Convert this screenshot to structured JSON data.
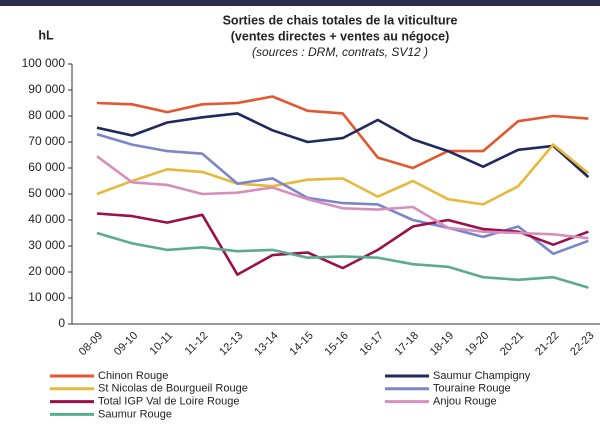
{
  "chart_data": {
    "type": "line",
    "title": "Sorties de chais totales de la viticulture",
    "subtitle": "(ventes directes + ventes au négoce)",
    "source": "(sources : DRM, contrats, SV12 )",
    "y_label": "hL",
    "categories": [
      "08-09",
      "09-10",
      "10-11",
      "11-12",
      "12-13",
      "13-14",
      "14-15",
      "15-16",
      "16-17",
      "17-18",
      "18-19",
      "19-20",
      "20-21",
      "21-22",
      "22-23"
    ],
    "ylim": [
      0,
      100000
    ],
    "yticks": [
      {
        "value": 0,
        "label": "0"
      },
      {
        "value": 10000,
        "label": "10 000"
      },
      {
        "value": 20000,
        "label": "20 000"
      },
      {
        "value": 30000,
        "label": "30 000"
      },
      {
        "value": 40000,
        "label": "40 000"
      },
      {
        "value": 50000,
        "label": "50 000"
      },
      {
        "value": 60000,
        "label": "60 000"
      },
      {
        "value": 70000,
        "label": "70 000"
      },
      {
        "value": 80000,
        "label": "80 000"
      },
      {
        "value": 90000,
        "label": "90 000"
      },
      {
        "value": 100000,
        "label": "100 000"
      }
    ],
    "grid": false,
    "legend": "bottom",
    "series": [
      {
        "name": "Chinon Rouge",
        "color": "#e4572e",
        "values": [
          85000,
          84500,
          81500,
          84500,
          85000,
          87500,
          82000,
          81000,
          64000,
          60000,
          66500,
          66500,
          78000,
          80000,
          79000
        ]
      },
      {
        "name": "Saumur Champigny",
        "color": "#1f2a5c",
        "values": [
          75500,
          72500,
          77500,
          79500,
          81000,
          74500,
          70000,
          71500,
          78500,
          71000,
          66500,
          60500,
          67000,
          68500,
          56500
        ]
      },
      {
        "name": "St Nicolas de Bourgueil Rouge",
        "color": "#e8b83a",
        "values": [
          50000,
          55000,
          59500,
          58500,
          54000,
          53000,
          55500,
          56000,
          49000,
          55000,
          48000,
          46000,
          53000,
          69000,
          58000
        ]
      },
      {
        "name": "Touraine Rouge",
        "color": "#7b86c9",
        "values": [
          73000,
          69000,
          66500,
          65500,
          54000,
          56000,
          48500,
          46500,
          46000,
          40000,
          37000,
          33500,
          37500,
          27000,
          32000
        ]
      },
      {
        "name": "Total IGP Val de Loire Rouge",
        "color": "#9b1048",
        "values": [
          42500,
          41500,
          39000,
          42000,
          19000,
          26500,
          27500,
          21500,
          28500,
          37500,
          40000,
          36500,
          35500,
          30500,
          35500
        ]
      },
      {
        "name": "Anjou Rouge",
        "color": "#d68fbd",
        "values": [
          64500,
          54500,
          53500,
          50000,
          50500,
          52500,
          48000,
          44500,
          44000,
          45000,
          37000,
          35500,
          35000,
          34500,
          33000
        ]
      },
      {
        "name": "Saumur Rouge",
        "color": "#5aab8f",
        "values": [
          35000,
          31000,
          28500,
          29500,
          28000,
          28500,
          25500,
          26000,
          25500,
          23000,
          22000,
          18000,
          17000,
          18000,
          14000
        ]
      }
    ]
  }
}
